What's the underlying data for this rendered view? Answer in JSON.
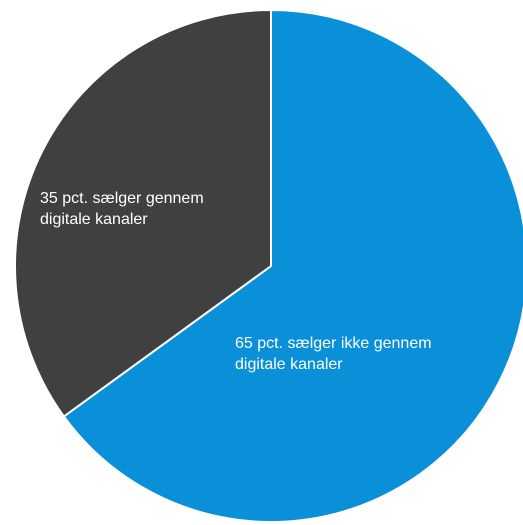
{
  "chart_data": {
    "type": "pie",
    "title": "",
    "start_angle_deg": 0,
    "direction": "clockwise",
    "slices": [
      {
        "value": 65,
        "color": "#0a8fd9",
        "label_lines": [
          "65 pct. sælger ikke gennem",
          "digitale kanaler"
        ],
        "label_color": "#ffffff"
      },
      {
        "value": 35,
        "color": "#404040",
        "label_lines": [
          "35 pct. sælger gennem",
          "digitale kanaler"
        ],
        "label_color": "#ffffff"
      }
    ],
    "slice_border_color": "#ffffff"
  }
}
